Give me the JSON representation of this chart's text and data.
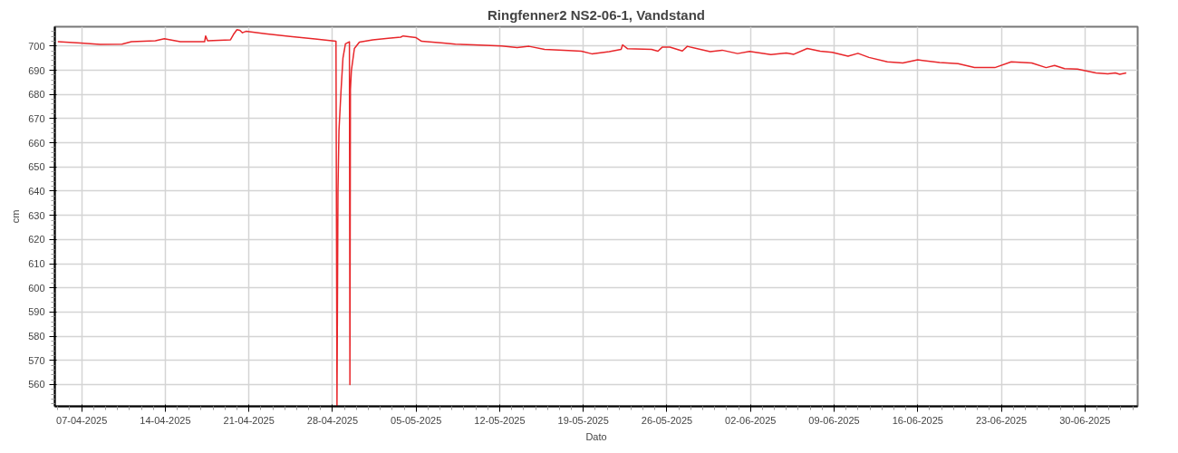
{
  "chart_data": {
    "type": "line",
    "title": "Ringfenner2 NS2-06-1, Vandstand",
    "xlabel": "Dato",
    "ylabel": "cm",
    "x": [
      "2025-04-05T00:00",
      "2025-04-06T22:00",
      "2025-04-08T13:00",
      "2025-04-10T09:00",
      "2025-04-11T04:00",
      "2025-04-13T04:00",
      "2025-04-13T22:00",
      "2025-04-15T06:00",
      "2025-04-17T07:00",
      "2025-04-17T09:00",
      "2025-04-17T13:00",
      "2025-04-19T11:00",
      "2025-04-19T17:00",
      "2025-04-20T00:00",
      "2025-04-20T06:00",
      "2025-04-20T11:00",
      "2025-04-20T18:00",
      "2025-04-22T09:00",
      "2025-04-24T11:00",
      "2025-04-26T13:00",
      "2025-04-28T07:00",
      "2025-04-28T09:00",
      "2025-04-28T11:00",
      "2025-04-28T13:00",
      "2025-04-28T17:00",
      "2025-04-28T21:00",
      "2025-04-29T02:00",
      "2025-04-29T10:00",
      "2025-04-29T11:00",
      "2025-04-29T12:00",
      "2025-04-29T14:00",
      "2025-04-29T20:00",
      "2025-04-30T06:00",
      "2025-05-01T09:00",
      "2025-05-02T16:00",
      "2025-05-03T17:00",
      "2025-05-03T22:00",
      "2025-05-05T00:00",
      "2025-05-05T11:00",
      "2025-05-07T07:00",
      "2025-05-08T07:00",
      "2025-05-09T20:00",
      "2025-05-12T04:00",
      "2025-05-13T11:00",
      "2025-05-14T11:00",
      "2025-05-15T18:00",
      "2025-05-17T18:00",
      "2025-05-18T20:00",
      "2025-05-19T17:00",
      "2025-05-21T04:00",
      "2025-05-22T04:00",
      "2025-05-22T07:00",
      "2025-05-22T17:00",
      "2025-05-24T17:00",
      "2025-05-25T06:00",
      "2025-05-25T15:00",
      "2025-05-26T06:00",
      "2025-05-27T07:00",
      "2025-05-27T17:00",
      "2025-05-29T15:00",
      "2025-05-30T15:00",
      "2025-05-31T22:00",
      "2025-06-01T22:00",
      "2025-06-03T17:00",
      "2025-06-05T00:00",
      "2025-06-05T15:00",
      "2025-06-06T18:00",
      "2025-06-07T20:00",
      "2025-06-08T20:00",
      "2025-06-10T04:00",
      "2025-06-11T00:00",
      "2025-06-11T22:00",
      "2025-06-13T11:00",
      "2025-06-14T18:00",
      "2025-06-16T00:00",
      "2025-06-17T20:00",
      "2025-06-19T09:00",
      "2025-06-20T18:00",
      "2025-06-22T11:00",
      "2025-06-23T20:00",
      "2025-06-25T13:00",
      "2025-06-26T18:00",
      "2025-06-27T11:00",
      "2025-06-28T07:00",
      "2025-06-29T09:00",
      "2025-06-30T22:00",
      "2025-07-01T22:00",
      "2025-07-02T13:00",
      "2025-07-02T22:00",
      "2025-07-03T11:00"
    ],
    "series": [
      {
        "color": "#e8262a",
        "values": [
          701.8,
          701.3,
          700.7,
          700.8,
          701.8,
          702.2,
          703.0,
          701.8,
          701.8,
          704.2,
          702.2,
          702.6,
          704.8,
          706.8,
          706.5,
          705.5,
          706.1,
          705.1,
          704.0,
          702.9,
          702.0,
          551,
          640,
          665,
          681,
          695,
          700.9,
          701.8,
          560,
          682,
          690,
          699,
          701.6,
          702.6,
          703.2,
          703.7,
          704.2,
          703.5,
          702.0,
          701.3,
          700.8,
          700.5,
          700.0,
          699.4,
          699.9,
          698.6,
          698.2,
          697.9,
          696.8,
          697.7,
          698.6,
          700.5,
          698.9,
          698.6,
          697.9,
          699.6,
          699.6,
          698.0,
          699.9,
          697.7,
          698.3,
          696.9,
          697.8,
          696.5,
          697.1,
          696.6,
          699.0,
          697.9,
          697.4,
          695.8,
          697.0,
          695.3,
          693.5,
          693.0,
          694.3,
          693.2,
          692.7,
          691.1,
          691.1,
          693.5,
          693.0,
          691.1,
          692.0,
          690.7,
          690.5,
          688.9,
          688.5,
          688.9,
          688.3,
          688.9
        ]
      }
    ],
    "xlim": [
      "2025-04-04T18:00",
      "2025-07-04T10:00"
    ],
    "xticks": [
      {
        "value": "2025-04-07",
        "label": "07-04-2025"
      },
      {
        "value": "2025-04-14",
        "label": "14-04-2025"
      },
      {
        "value": "2025-04-21",
        "label": "21-04-2025"
      },
      {
        "value": "2025-04-28",
        "label": "28-04-2025"
      },
      {
        "value": "2025-05-05",
        "label": "05-05-2025"
      },
      {
        "value": "2025-05-12",
        "label": "12-05-2025"
      },
      {
        "value": "2025-05-19",
        "label": "19-05-2025"
      },
      {
        "value": "2025-05-26",
        "label": "26-05-2025"
      },
      {
        "value": "2025-06-02",
        "label": "02-06-2025"
      },
      {
        "value": "2025-06-09",
        "label": "09-06-2025"
      },
      {
        "value": "2025-06-16",
        "label": "16-06-2025"
      },
      {
        "value": "2025-06-23",
        "label": "23-06-2025"
      },
      {
        "value": "2025-06-30",
        "label": "30-06-2025"
      }
    ],
    "ylim": [
      551,
      708
    ],
    "yticks": [
      560,
      570,
      580,
      590,
      600,
      610,
      620,
      630,
      640,
      650,
      660,
      670,
      680,
      690,
      700
    ],
    "grid": true,
    "line_style": "solid"
  }
}
